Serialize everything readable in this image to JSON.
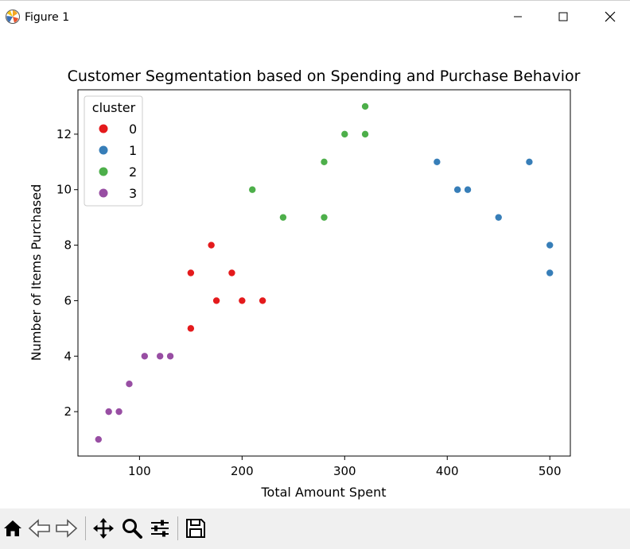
{
  "window": {
    "title": "Figure 1",
    "icons": [
      "matplotlib-logo-icon",
      "minimize-icon",
      "maximize-icon",
      "close-icon"
    ]
  },
  "toolbar": {
    "buttons": [
      "home-icon",
      "back-icon",
      "forward-icon",
      "pan-icon",
      "zoom-icon",
      "configure-subplots-icon",
      "save-icon"
    ]
  },
  "chart_data": {
    "type": "scatter",
    "title": "Customer Segmentation based on Spending and Purchase Behavior",
    "xlabel": "Total Amount Spent",
    "ylabel": "Number of Items Purchased",
    "xlim": [
      40,
      520
    ],
    "ylim": [
      0.4,
      13.6
    ],
    "xticks": [
      100,
      200,
      300,
      400,
      500
    ],
    "yticks": [
      2,
      4,
      6,
      8,
      10,
      12
    ],
    "grid": false,
    "legend": {
      "title": "cluster",
      "position": "top-left"
    },
    "series": [
      {
        "name": "0",
        "color": "#e41a1c",
        "points": [
          [
            150,
            7
          ],
          [
            170,
            8
          ],
          [
            190,
            7
          ],
          [
            175,
            6
          ],
          [
            200,
            6
          ],
          [
            220,
            6
          ],
          [
            150,
            5
          ]
        ]
      },
      {
        "name": "1",
        "color": "#377eb8",
        "points": [
          [
            390,
            11
          ],
          [
            410,
            10
          ],
          [
            420,
            10
          ],
          [
            450,
            9
          ],
          [
            480,
            11
          ],
          [
            500,
            8
          ],
          [
            500,
            7
          ]
        ]
      },
      {
        "name": "2",
        "color": "#4daf4a",
        "points": [
          [
            320,
            13
          ],
          [
            300,
            12
          ],
          [
            320,
            12
          ],
          [
            280,
            11
          ],
          [
            210,
            10
          ],
          [
            240,
            9
          ],
          [
            280,
            9
          ]
        ]
      },
      {
        "name": "3",
        "color": "#984ea3",
        "points": [
          [
            105,
            4
          ],
          [
            120,
            4
          ],
          [
            130,
            4
          ],
          [
            90,
            3
          ],
          [
            70,
            2
          ],
          [
            80,
            2
          ],
          [
            60,
            1
          ]
        ]
      }
    ]
  }
}
